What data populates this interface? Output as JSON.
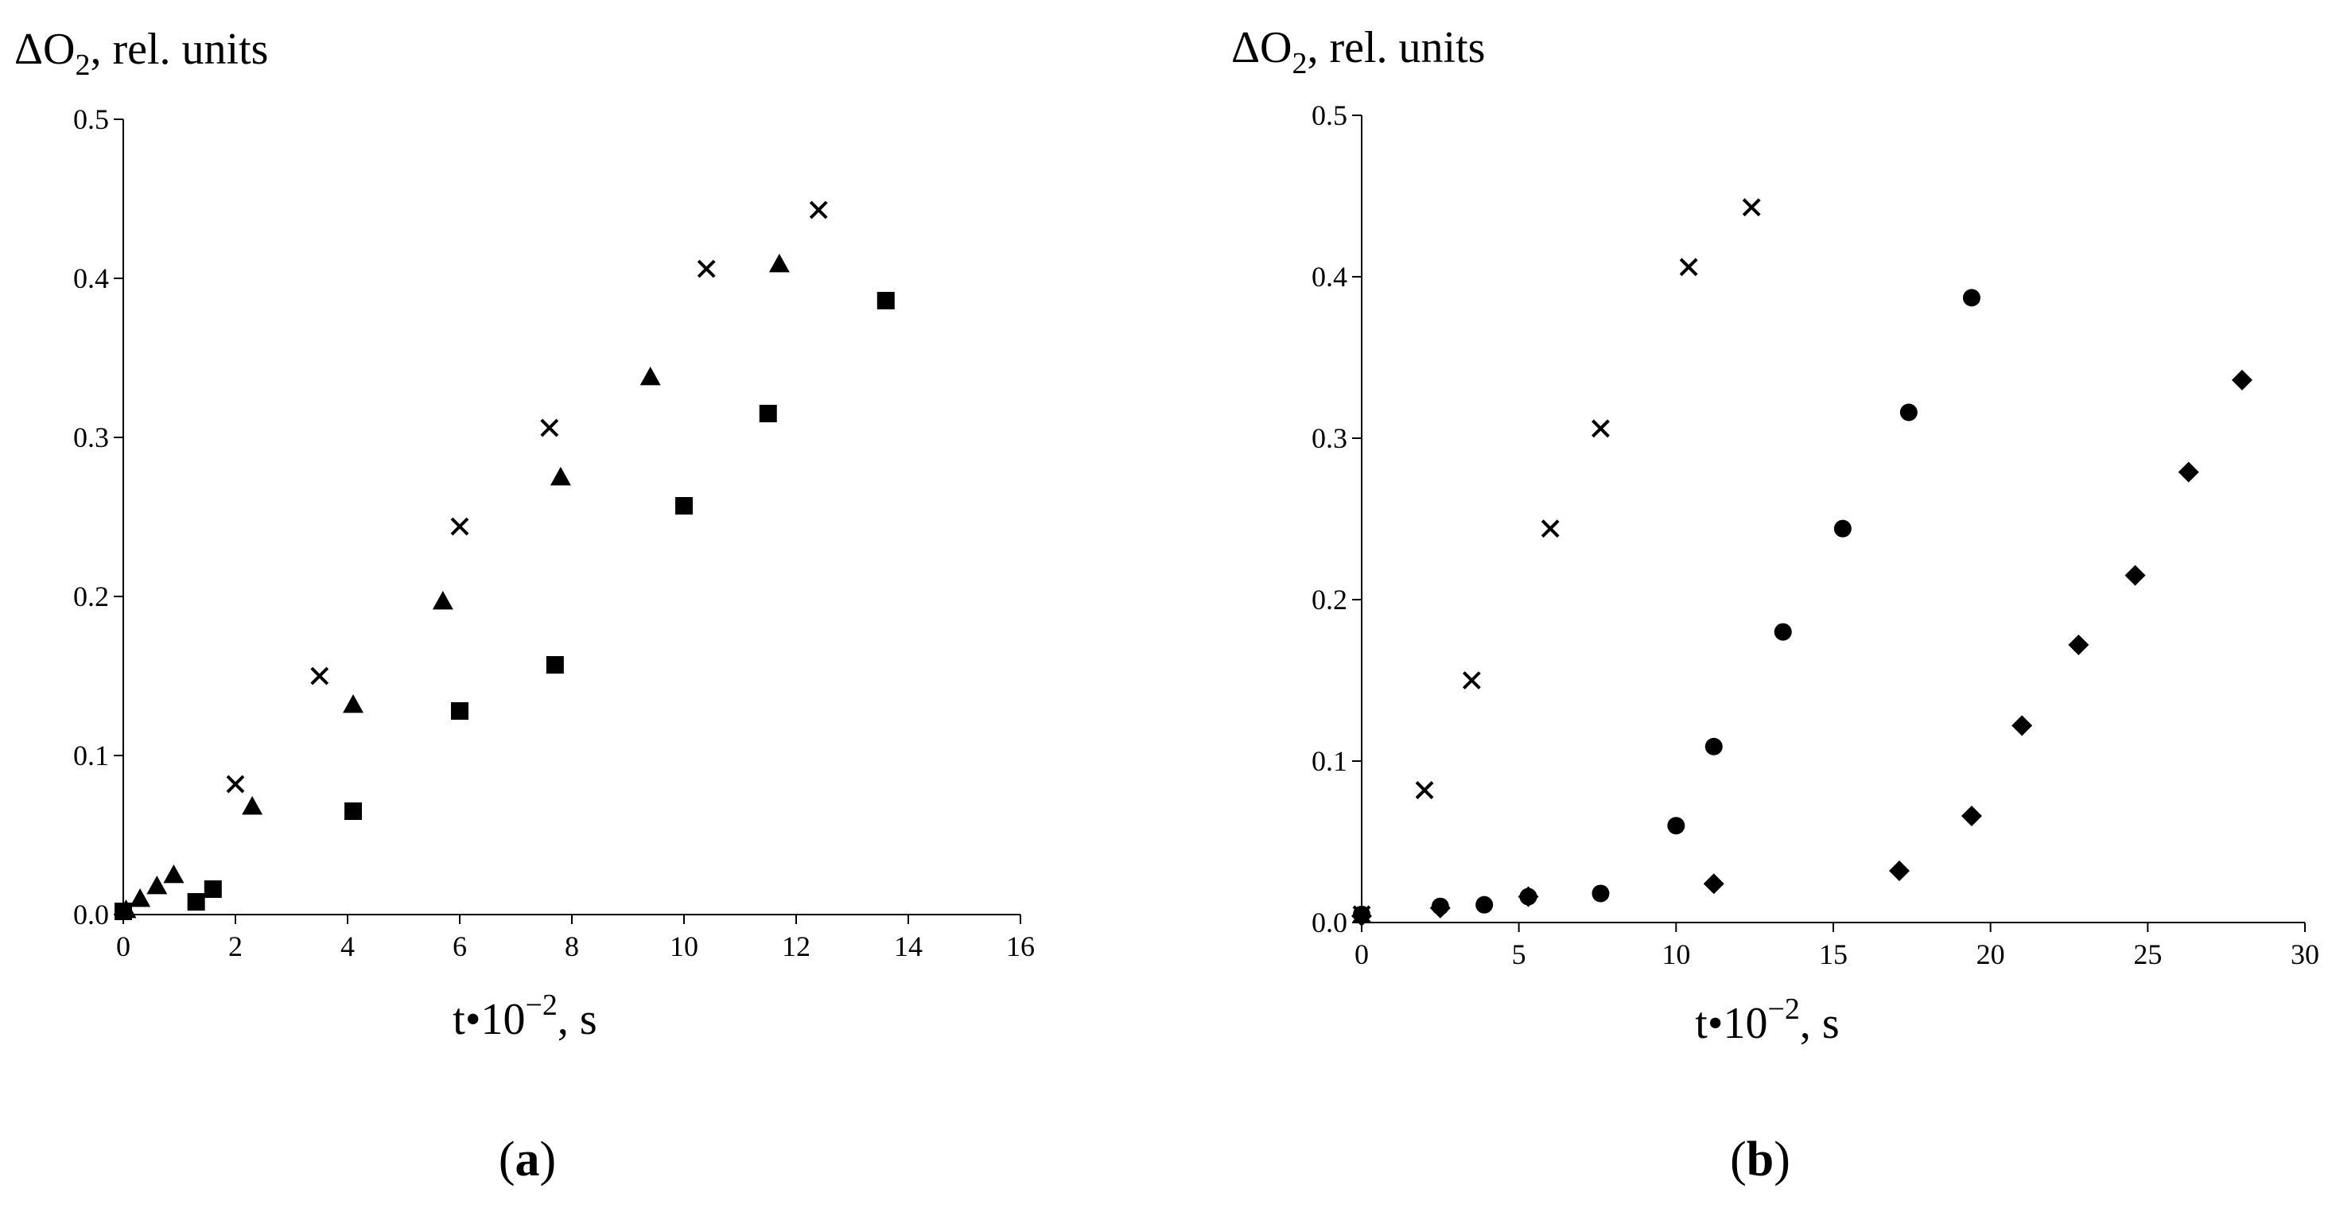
{
  "colors": {
    "ink": "#000000",
    "background": "#ffffff"
  },
  "chart_data": [
    {
      "type": "scatter",
      "panel_label": "(a)",
      "ylabel_main": "ΔO",
      "ylabel_sub": "2",
      "ylabel_rest": ", rel. units",
      "xlabel_main": "t•10",
      "xlabel_sup": "−2",
      "xlabel_rest": ", s",
      "xlim": [
        0,
        16
      ],
      "ylim": [
        0,
        0.5
      ],
      "xticks": [
        0,
        2,
        4,
        6,
        8,
        10,
        12,
        14,
        16
      ],
      "xtick_labels": [
        "0",
        "2",
        "4",
        "6",
        "8",
        "10",
        "12",
        "14",
        "16"
      ],
      "yticks": [
        0,
        0.1,
        0.2,
        0.3,
        0.4,
        0.5
      ],
      "ytick_labels": [
        "0.0",
        "0.1",
        "0.2",
        "0.3",
        "0.4",
        "0.5"
      ],
      "series": [
        {
          "marker": "cross",
          "x": [
            2.0,
            3.5,
            6.0,
            7.6,
            10.4,
            12.4
          ],
          "y": [
            0.082,
            0.15,
            0.244,
            0.306,
            0.406,
            0.443
          ]
        },
        {
          "marker": "triangle",
          "x": [
            0.05,
            0.3,
            0.6,
            0.9,
            2.3,
            4.1,
            5.7,
            7.8,
            9.4,
            11.7
          ],
          "y": [
            0.003,
            0.01,
            0.018,
            0.025,
            0.068,
            0.132,
            0.197,
            0.275,
            0.338,
            0.409
          ]
        },
        {
          "marker": "square",
          "x": [
            0.0,
            1.3,
            1.6,
            4.1,
            6.0,
            7.7,
            10.0,
            11.5,
            13.6
          ],
          "y": [
            0.002,
            0.008,
            0.016,
            0.065,
            0.128,
            0.157,
            0.257,
            0.315,
            0.386
          ]
        }
      ]
    },
    {
      "type": "scatter",
      "panel_label": "(b)",
      "ylabel_main": "ΔO",
      "ylabel_sub": "2",
      "ylabel_rest": ", rel. units",
      "xlabel_main": "t•10",
      "xlabel_sup": "−2",
      "xlabel_rest": ", s",
      "xlim": [
        0,
        30
      ],
      "ylim": [
        0,
        0.5
      ],
      "xticks": [
        0,
        5,
        10,
        15,
        20,
        25,
        30
      ],
      "xtick_labels": [
        "0",
        "5",
        "10",
        "15",
        "20",
        "25",
        "30"
      ],
      "yticks": [
        0,
        0.1,
        0.2,
        0.3,
        0.4,
        0.5
      ],
      "ytick_labels": [
        "0.0",
        "0.1",
        "0.2",
        "0.3",
        "0.4",
        "0.5"
      ],
      "series": [
        {
          "marker": "cross",
          "x": [
            0.0,
            2.0,
            3.5,
            6.0,
            7.6,
            10.4,
            12.4
          ],
          "y": [
            0.005,
            0.082,
            0.15,
            0.244,
            0.306,
            0.406,
            0.443
          ]
        },
        {
          "marker": "circle",
          "x": [
            0.0,
            2.5,
            3.9,
            5.3,
            7.6,
            10.0,
            11.2,
            13.4,
            15.3,
            17.4,
            19.4
          ],
          "y": [
            0.005,
            0.01,
            0.011,
            0.016,
            0.018,
            0.06,
            0.109,
            0.18,
            0.244,
            0.316,
            0.387
          ]
        },
        {
          "marker": "diamond",
          "x": [
            0.0,
            2.5,
            5.3,
            11.2,
            17.1,
            19.4,
            21.0,
            22.8,
            24.6,
            26.3,
            28.0
          ],
          "y": [
            0.004,
            0.009,
            0.016,
            0.024,
            0.032,
            0.066,
            0.122,
            0.172,
            0.215,
            0.279,
            0.336
          ]
        }
      ]
    }
  ]
}
